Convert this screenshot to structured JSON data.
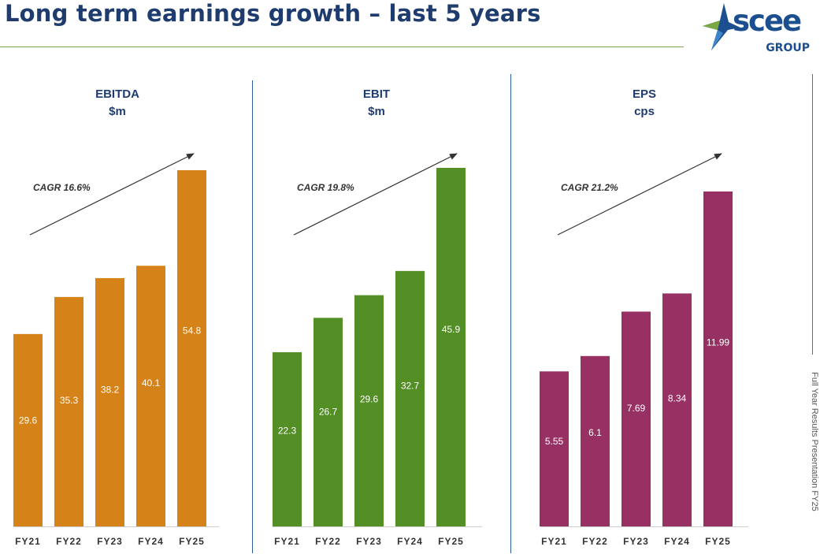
{
  "page": {
    "title": "Long term earnings growth – last 5 years",
    "side_text": "Full Year Results Presentation FY25",
    "logo": {
      "word": "scee",
      "sub": "GROUP",
      "icon": "star-bolt-icon"
    }
  },
  "colors": {
    "title": "#1f3c6e",
    "ebitda": "#d58318",
    "ebit": "#538f24",
    "eps": "#983163",
    "heading": "#1f3c6e"
  },
  "chart_data": [
    {
      "type": "bar",
      "title": "EBITDA",
      "subtitle": "$m",
      "categories": [
        "FY21",
        "FY22",
        "FY23",
        "FY24",
        "FY25"
      ],
      "values": [
        29.6,
        35.3,
        38.2,
        40.1,
        54.8
      ],
      "labels": [
        "29.6",
        "35.3",
        "38.2",
        "40.1",
        "54.8"
      ],
      "annotation": "CAGR 16.6%",
      "ylim": [
        0,
        54.8
      ],
      "grid": false,
      "color": "#d58318"
    },
    {
      "type": "bar",
      "title": "EBIT",
      "subtitle": "$m",
      "categories": [
        "FY21",
        "FY22",
        "FY23",
        "FY24",
        "FY25"
      ],
      "values": [
        22.3,
        26.7,
        29.6,
        32.7,
        45.9
      ],
      "labels": [
        "22.3",
        "26.7",
        "29.6",
        "32.7",
        "45.9"
      ],
      "annotation": "CAGR 19.8%",
      "ylim": [
        0,
        45.9
      ],
      "grid": false,
      "color": "#538f24"
    },
    {
      "type": "bar",
      "title": "EPS",
      "subtitle": "cps",
      "categories": [
        "FY21",
        "FY22",
        "FY23",
        "FY24",
        "FY25"
      ],
      "values": [
        5.55,
        6.1,
        7.69,
        8.34,
        11.99
      ],
      "labels": [
        "5.55",
        "6.1",
        "7.69",
        "8.34",
        "11.99"
      ],
      "annotation": "CAGR 21.2%",
      "ylim": [
        0,
        11.99
      ],
      "grid": false,
      "color": "#983163"
    }
  ]
}
